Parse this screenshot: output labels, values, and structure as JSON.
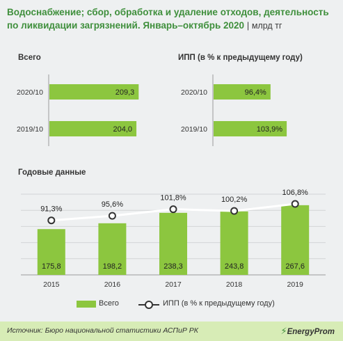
{
  "header": {
    "title": "Водоснабжение; сбор, обработка и удаление отходов, деятельность по ликвидации загрязнений. Январь–октябрь 2020",
    "separator": "|",
    "unit": "млрд тг"
  },
  "chart_data": [
    {
      "type": "bar",
      "orientation": "horizontal",
      "title": "Всего",
      "categories": [
        "2020/10",
        "2019/10"
      ],
      "values": [
        209.3,
        204.0
      ],
      "value_labels": [
        "209,3",
        "204,0"
      ],
      "xlim": [
        0,
        230
      ],
      "color": "#8cc63f"
    },
    {
      "type": "bar",
      "orientation": "horizontal",
      "title": "ИПП (в % к предыдущему году)",
      "categories": [
        "2020/10",
        "2019/10"
      ],
      "values": [
        96.4,
        103.9
      ],
      "value_labels": [
        "96,4%",
        "103,9%"
      ],
      "xlim": [
        70,
        110
      ],
      "color": "#8cc63f"
    },
    {
      "type": "bar+line",
      "title": "Годовые данные",
      "categories": [
        "2015",
        "2016",
        "2017",
        "2018",
        "2019"
      ],
      "series": [
        {
          "name": "Всего",
          "type": "bar",
          "values": [
            175.8,
            198.2,
            238.3,
            243.8,
            267.6
          ],
          "value_labels": [
            "175,8",
            "198,2",
            "238,3",
            "243,8",
            "267,6"
          ],
          "color": "#8cc63f"
        },
        {
          "name": "ИПП (в % к предыдущему году)",
          "type": "line",
          "values": [
            91.3,
            95.6,
            101.8,
            100.2,
            106.8
          ],
          "value_labels": [
            "91,3%",
            "95,6%",
            "101,8%",
            "100,2%",
            "106,8%"
          ],
          "color": "#ffffff"
        }
      ],
      "ylim_bars": [
        0,
        310
      ],
      "ylim_line": [
        40,
        116
      ],
      "grid": true,
      "legend": "bottom"
    }
  ],
  "footer": {
    "source": "Источник: Бюро национальной статистики АСПиР РК",
    "logo": "EnergyProm"
  }
}
